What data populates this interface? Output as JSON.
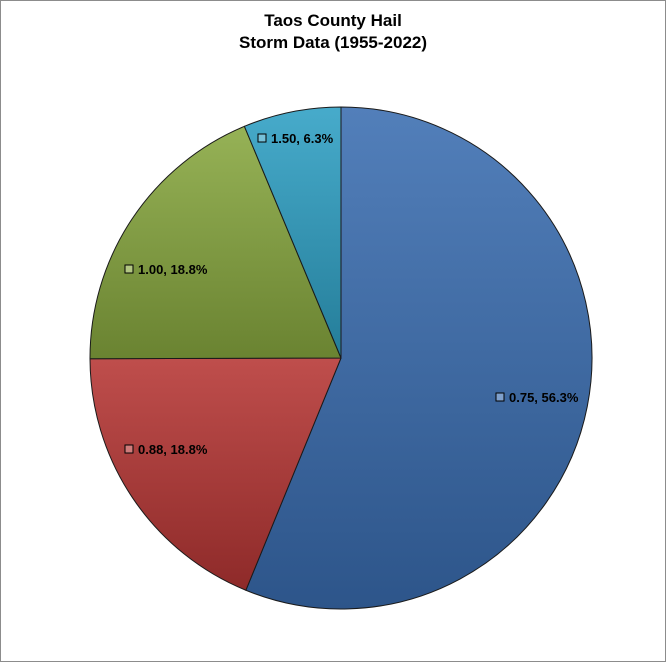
{
  "chart_data": {
    "type": "pie",
    "title_line1": "Taos County Hail",
    "title_line2": "Storm Data (1955-2022)",
    "start_angle_deg": 0,
    "direction": "clockwise",
    "legend": "none",
    "slices": [
      {
        "category": "0.75",
        "percent": 56.3,
        "label": "0.75, 56.3%",
        "color": "#3a6db1"
      },
      {
        "category": "0.88",
        "percent": 18.8,
        "label": "0.88, 18.8%",
        "color": "#b63634"
      },
      {
        "category": "1.00",
        "percent": 18.8,
        "label": "1.00, 18.8%",
        "color": "#88a83f"
      },
      {
        "category": "1.50",
        "percent": 6.3,
        "label": "1.50, 6.3%",
        "color": "#2ea0c4"
      }
    ]
  }
}
